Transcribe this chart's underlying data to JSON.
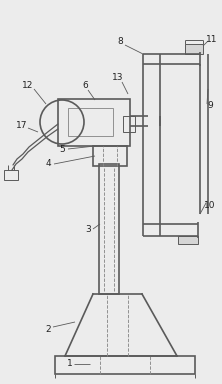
{
  "bg_color": "#ececec",
  "line_color": "#5a5a5a",
  "dashed_color": "#8a8a8a",
  "label_color": "#222222",
  "figsize": [
    2.22,
    3.84
  ],
  "dpi": 100,
  "lw_main": 1.2,
  "lw_thin": 0.7,
  "lw_dash": 0.65,
  "label_fs": 6.5
}
